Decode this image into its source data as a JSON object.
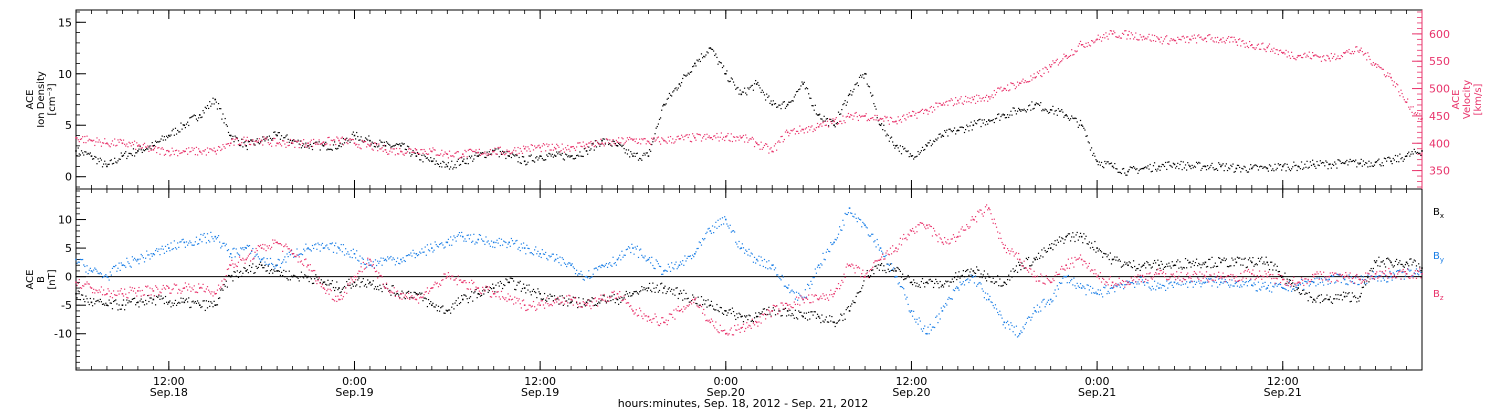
{
  "colors": {
    "black": "#000000",
    "pink": "#e8336b",
    "blue": "#1a7ee6"
  },
  "chart_data": [
    {
      "type": "scatter",
      "panel": "top",
      "ylabel_lines": [
        "ACE",
        "Ion Density",
        "[cm⁻³]"
      ],
      "ylim": [
        -1,
        16
      ],
      "yticks": [
        0,
        5,
        10,
        15
      ],
      "y2label_lines": [
        "ACE",
        "Velocity",
        "[km/s]"
      ],
      "y2lim": [
        320,
        640
      ],
      "y2ticks": [
        350,
        400,
        450,
        500,
        550,
        600
      ],
      "series": [
        {
          "name": "Ion Density",
          "color": "#000000",
          "axis": "left",
          "x": [
            0,
            1,
            2,
            3,
            4,
            5,
            6,
            7,
            8,
            9,
            10,
            11,
            12,
            13,
            14,
            15,
            16,
            17,
            18,
            19,
            20,
            21,
            22,
            23,
            24,
            25,
            26,
            27,
            28,
            29,
            30,
            31,
            32,
            33,
            34,
            35,
            36,
            37,
            38,
            39,
            40,
            41,
            42,
            43,
            44,
            45,
            46,
            47,
            48,
            49,
            50,
            51,
            52,
            53,
            54,
            55,
            56,
            57,
            58,
            59,
            60,
            61,
            62,
            63,
            64,
            65,
            66,
            67,
            68,
            69,
            70,
            71,
            72,
            73,
            74,
            75,
            76,
            77,
            78,
            79,
            80,
            81,
            82,
            83,
            84,
            85,
            86,
            87
          ],
          "y": [
            2.5,
            2.0,
            1.0,
            2.0,
            2.5,
            3.0,
            4.0,
            5.0,
            6.0,
            7.5,
            4.0,
            3.0,
            3.5,
            4.0,
            3.5,
            3.0,
            3.0,
            3.0,
            4.0,
            3.5,
            3.0,
            3.0,
            2.0,
            1.5,
            1.0,
            1.5,
            2.0,
            2.5,
            2.0,
            1.5,
            2.0,
            2.0,
            2.0,
            2.5,
            3.5,
            3.0,
            2.0,
            2.0,
            7.0,
            9.0,
            11.0,
            12.5,
            10.0,
            8.0,
            9.0,
            7.0,
            7.0,
            9.0,
            6.0,
            5.0,
            8.0,
            10.0,
            5.0,
            3.0,
            2.0,
            3.0,
            4.0,
            4.5,
            5.0,
            5.5,
            6.0,
            6.5,
            7.0,
            6.5,
            6.0,
            5.0,
            1.5,
            1.0,
            0.5,
            0.8,
            1.0,
            1.2,
            1.0,
            1.0,
            1.0,
            0.8,
            0.8,
            0.8,
            1.0,
            1.0,
            1.2,
            1.2,
            1.3,
            1.3,
            1.4,
            1.5,
            2.0,
            2.5
          ]
        },
        {
          "name": "Velocity",
          "color": "#e8336b",
          "axis": "right",
          "x": [
            0,
            1,
            2,
            3,
            4,
            5,
            6,
            7,
            8,
            9,
            10,
            11,
            12,
            13,
            14,
            15,
            16,
            17,
            18,
            19,
            20,
            21,
            22,
            23,
            24,
            25,
            26,
            27,
            28,
            29,
            30,
            31,
            32,
            33,
            34,
            35,
            36,
            37,
            38,
            39,
            40,
            41,
            42,
            43,
            44,
            45,
            46,
            47,
            48,
            49,
            50,
            51,
            52,
            53,
            54,
            55,
            56,
            57,
            58,
            59,
            60,
            61,
            62,
            63,
            64,
            65,
            66,
            67,
            68,
            69,
            70,
            71,
            72,
            73,
            74,
            75,
            76,
            77,
            78,
            79,
            80,
            81,
            82,
            83,
            84,
            85,
            86,
            87
          ],
          "y": [
            410,
            405,
            400,
            400,
            395,
            388,
            385,
            385,
            385,
            385,
            400,
            405,
            405,
            400,
            400,
            400,
            402,
            405,
            400,
            395,
            388,
            385,
            388,
            385,
            380,
            380,
            383,
            385,
            385,
            390,
            392,
            390,
            393,
            398,
            400,
            402,
            406,
            403,
            405,
            408,
            410,
            410,
            412,
            410,
            400,
            385,
            420,
            425,
            430,
            440,
            448,
            450,
            445,
            440,
            450,
            460,
            470,
            478,
            480,
            485,
            500,
            510,
            520,
            540,
            560,
            580,
            590,
            600,
            598,
            595,
            590,
            588,
            590,
            592,
            590,
            585,
            580,
            575,
            565,
            560,
            560,
            555,
            565,
            570,
            545,
            520,
            475,
            445
          ]
        }
      ]
    },
    {
      "type": "scatter",
      "panel": "bottom",
      "ylabel_lines": [
        "ACE",
        "B",
        "[nT]"
      ],
      "ylim": [
        -16,
        15
      ],
      "yticks": [
        -10,
        -5,
        0,
        5,
        10
      ],
      "zero_line": true,
      "series": [
        {
          "name": "B",
          "subscript": "x",
          "color": "#000000",
          "x": [
            0,
            1,
            2,
            3,
            4,
            5,
            6,
            7,
            8,
            9,
            10,
            11,
            12,
            13,
            14,
            15,
            16,
            17,
            18,
            19,
            20,
            21,
            22,
            23,
            24,
            25,
            26,
            27,
            28,
            29,
            30,
            31,
            32,
            33,
            34,
            35,
            36,
            37,
            38,
            39,
            40,
            41,
            42,
            43,
            44,
            45,
            46,
            47,
            48,
            49,
            50,
            51,
            52,
            53,
            54,
            55,
            56,
            57,
            58,
            59,
            60,
            61,
            62,
            63,
            64,
            65,
            66,
            67,
            68,
            69,
            70,
            71,
            72,
            73,
            74,
            75,
            76,
            77,
            78,
            79,
            80,
            81,
            82,
            83,
            84,
            85,
            86,
            87
          ],
          "y": [
            -3,
            -4.5,
            -5,
            -5,
            -4.5,
            -4,
            -4.5,
            -4.5,
            -5,
            -5,
            0,
            1,
            2,
            1,
            0,
            0,
            -1,
            -2,
            -1,
            -1,
            -2,
            -3,
            -3,
            -5,
            -6,
            -4,
            -3,
            -2,
            -1,
            -2,
            -3,
            -4,
            -4.5,
            -4.5,
            -4,
            -4,
            -3,
            -2,
            -2,
            -3,
            -4,
            -5,
            -6,
            -7,
            -7,
            -6,
            -6,
            -7,
            -7,
            -8,
            -6,
            0,
            2,
            1,
            -1,
            -1,
            -1.5,
            0,
            1,
            0,
            -1,
            2,
            3,
            5,
            7,
            7,
            5,
            3,
            2,
            2,
            2,
            2,
            2.5,
            2.5,
            2.5,
            2.5,
            2.5,
            2.5,
            0,
            -2,
            -4,
            -4,
            -3.5,
            -3.5,
            2.5,
            2.5,
            2.5,
            1.5
          ]
        },
        {
          "name": "B",
          "subscript": "y",
          "color": "#1a7ee6",
          "x": [
            0,
            1,
            2,
            3,
            4,
            5,
            6,
            7,
            8,
            9,
            10,
            11,
            12,
            13,
            14,
            15,
            16,
            17,
            18,
            19,
            20,
            21,
            22,
            23,
            24,
            25,
            26,
            27,
            28,
            29,
            30,
            31,
            32,
            33,
            34,
            35,
            36,
            37,
            38,
            39,
            40,
            41,
            42,
            43,
            44,
            45,
            46,
            47,
            48,
            49,
            50,
            51,
            52,
            53,
            54,
            55,
            56,
            57,
            58,
            59,
            60,
            61,
            62,
            63,
            64,
            65,
            66,
            67,
            68,
            69,
            70,
            71,
            72,
            73,
            74,
            75,
            76,
            77,
            78,
            79,
            80,
            81,
            82,
            83,
            84,
            85,
            86,
            87
          ],
          "y": [
            3,
            1,
            0,
            2,
            3,
            4,
            5,
            6,
            6.5,
            7,
            4,
            5,
            3,
            2,
            4,
            5,
            5,
            5,
            4,
            2,
            3,
            3,
            4,
            5,
            6,
            7,
            6.5,
            6,
            6,
            5,
            4,
            3,
            2,
            0,
            2,
            3,
            5,
            3,
            1,
            2,
            4,
            8,
            10,
            5,
            3,
            2,
            -2,
            -4,
            2,
            6,
            12,
            9,
            5,
            0,
            -6,
            -10,
            -6,
            -2,
            0,
            -4,
            -8,
            -10,
            -6,
            -4,
            0,
            -2,
            -3,
            -2,
            -1,
            -1,
            -2,
            -1,
            -1,
            -1,
            -1,
            -1,
            -1.5,
            -2,
            -2,
            -1.5,
            -1,
            -0.5,
            -0.5,
            -0.5,
            0,
            0,
            0.5,
            0.5
          ]
        },
        {
          "name": "B",
          "subscript": "z",
          "color": "#e8336b",
          "x": [
            0,
            1,
            2,
            3,
            4,
            5,
            6,
            7,
            8,
            9,
            10,
            11,
            12,
            13,
            14,
            15,
            16,
            17,
            18,
            19,
            20,
            21,
            22,
            23,
            24,
            25,
            26,
            27,
            28,
            29,
            30,
            31,
            32,
            33,
            34,
            35,
            36,
            37,
            38,
            39,
            40,
            41,
            42,
            43,
            44,
            45,
            46,
            47,
            48,
            49,
            50,
            51,
            52,
            53,
            54,
            55,
            56,
            57,
            58,
            59,
            60,
            61,
            62,
            63,
            64,
            65,
            66,
            67,
            68,
            69,
            70,
            71,
            72,
            73,
            74,
            75,
            76,
            77,
            78,
            79,
            80,
            81,
            82,
            83,
            84,
            85,
            86,
            87
          ],
          "y": [
            -1,
            -2,
            -3,
            -3,
            -2.5,
            -2.5,
            -2,
            -2,
            -2,
            -3,
            2,
            3,
            5,
            6,
            4,
            2,
            -2,
            -4,
            0,
            3,
            -2,
            -3,
            -4,
            -2,
            0,
            -1,
            -2,
            -3,
            -4,
            -5,
            -5,
            -4,
            -4,
            -5,
            -4,
            -3,
            -6,
            -7,
            -8,
            -6,
            -4,
            -8,
            -10,
            -9,
            -8,
            -6,
            -5,
            -4,
            -4,
            -3,
            2,
            0,
            3,
            5,
            8,
            9,
            6,
            7,
            10,
            12,
            5,
            3,
            0,
            -1,
            2,
            3,
            0,
            -1,
            -1,
            0,
            0.5,
            0,
            0,
            0,
            0,
            0,
            0.5,
            0,
            -0.5,
            -1,
            0,
            0,
            0,
            -0.5,
            0.5,
            0.5,
            0.5,
            0.5
          ]
        }
      ]
    }
  ],
  "x_axis": {
    "xlim": [
      0,
      87
    ],
    "ticks": [
      {
        "x": 6,
        "time": "12:00",
        "date": "Sep.18"
      },
      {
        "x": 18,
        "time": "0:00",
        "date": "Sep.19"
      },
      {
        "x": 30,
        "time": "12:00",
        "date": "Sep.19"
      },
      {
        "x": 42,
        "time": "0:00",
        "date": "Sep.20"
      },
      {
        "x": 54,
        "time": "12:00",
        "date": "Sep.20"
      },
      {
        "x": 66,
        "time": "0:00",
        "date": "Sep.21"
      },
      {
        "x": 78,
        "time": "12:00",
        "date": "Sep.21"
      }
    ],
    "label": "hours:minutes, Sep. 18, 2012 - Sep. 21, 2012"
  }
}
